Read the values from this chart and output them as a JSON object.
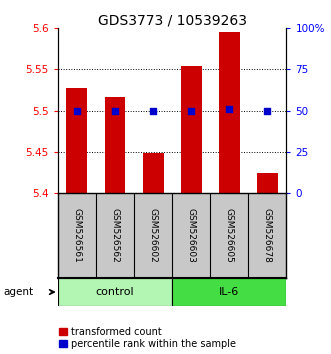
{
  "title": "GDS3773 / 10539263",
  "samples": [
    "GSM526561",
    "GSM526562",
    "GSM526602",
    "GSM526603",
    "GSM526605",
    "GSM526678"
  ],
  "bar_values": [
    5.528,
    5.516,
    5.448,
    5.554,
    5.595,
    5.424
  ],
  "bar_bottom": 5.4,
  "percentile_values": [
    50,
    50,
    50,
    50,
    51,
    50
  ],
  "ylim_left": [
    5.4,
    5.6
  ],
  "ylim_right": [
    0,
    100
  ],
  "yticks_left": [
    5.4,
    5.45,
    5.5,
    5.55,
    5.6
  ],
  "ytick_labels_left": [
    "5.4",
    "5.45",
    "5.5",
    "5.55",
    "5.6"
  ],
  "yticks_right": [
    0,
    25,
    50,
    75,
    100
  ],
  "ytick_labels_right": [
    "0",
    "25",
    "50",
    "75",
    "100%"
  ],
  "hlines": [
    5.45,
    5.5,
    5.55
  ],
  "groups": [
    {
      "label": "control",
      "indices": [
        0,
        1,
        2
      ],
      "light_color": "#b3f5b3",
      "dark_color": "#44dd44"
    },
    {
      "label": "IL-6",
      "indices": [
        3,
        4,
        5
      ],
      "light_color": "#44dd44",
      "dark_color": "#44dd44"
    }
  ],
  "bar_color": "#CC0000",
  "dot_color": "#0000CC",
  "bar_width": 0.55,
  "legend_items": [
    {
      "label": "transformed count",
      "color": "#CC0000"
    },
    {
      "label": "percentile rank within the sample",
      "color": "#0000CC"
    }
  ],
  "background_color": "#ffffff",
  "label_box_color": "#c8c8c8",
  "title_fontsize": 10,
  "tick_fontsize": 7.5,
  "sample_fontsize": 6.5,
  "legend_fontsize": 7,
  "group_fontsize": 8
}
